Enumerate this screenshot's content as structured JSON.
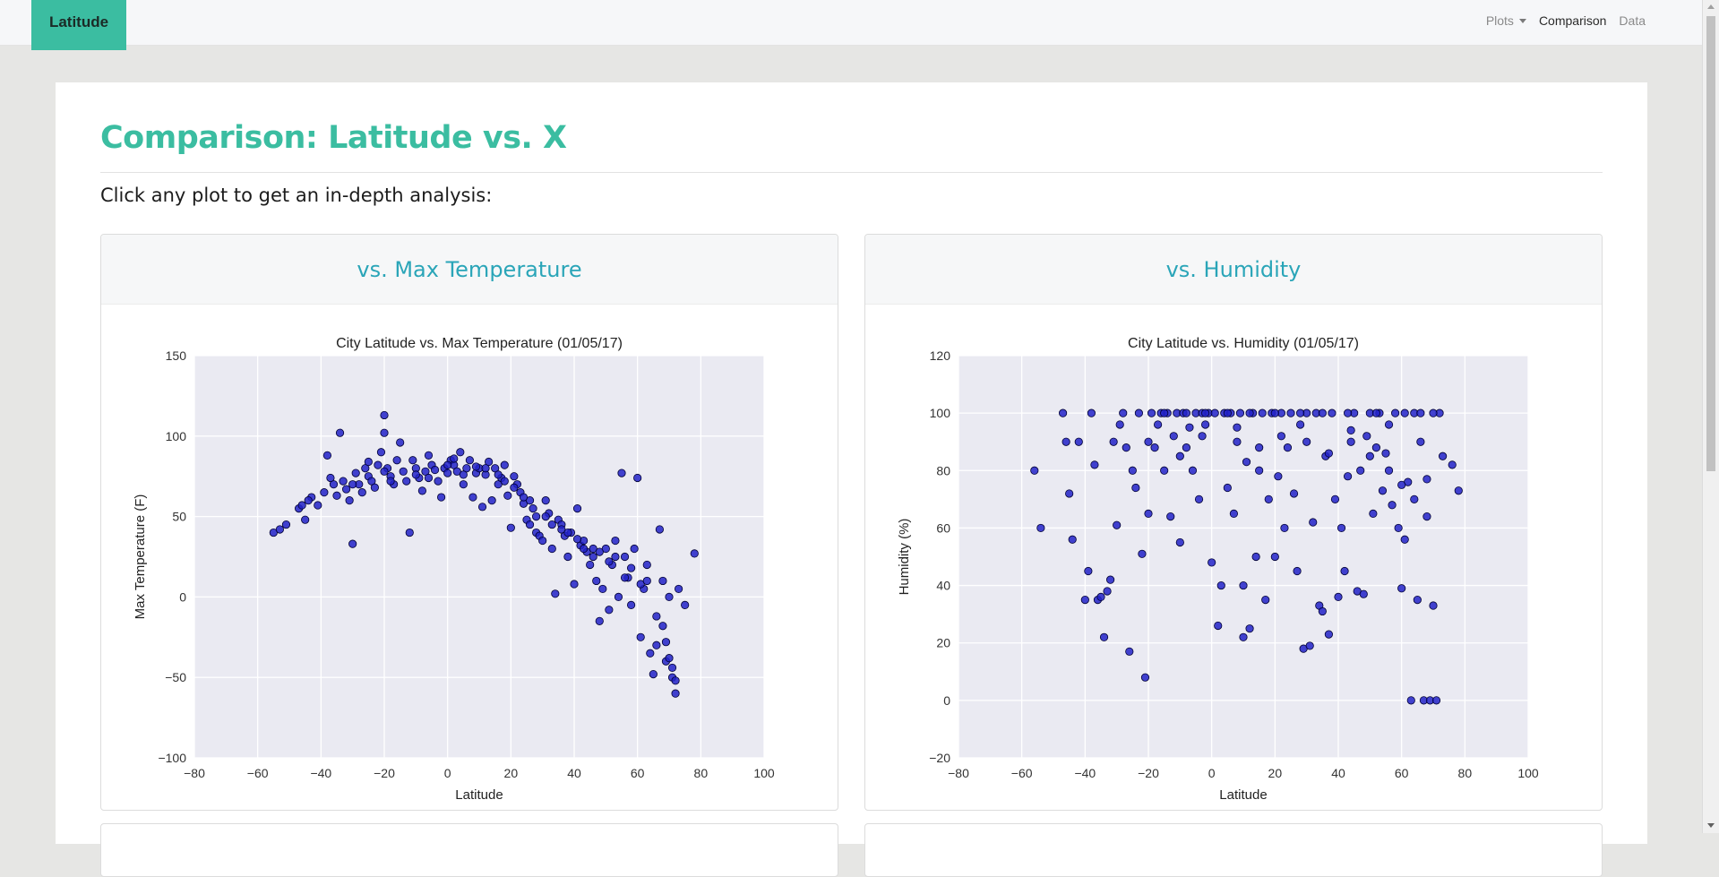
{
  "navbar": {
    "brand": "Latitude",
    "items": [
      {
        "label": "Plots",
        "has_caret": true,
        "active": false
      },
      {
        "label": "Comparison",
        "active": true
      },
      {
        "label": "Data",
        "active": false
      }
    ]
  },
  "page": {
    "title": "Comparison: Latitude vs. X",
    "instruction": "Click any plot to get an in-depth analysis:"
  },
  "colors": {
    "accent": "#3bbda1",
    "card_title": "#2aa5b8",
    "plot_bg": "#eaeaf2",
    "marker_fill": "#2222c8",
    "marker_edge": "#000033"
  },
  "cards": [
    {
      "header": "vs. Max Temperature"
    },
    {
      "header": "vs. Humidity"
    }
  ],
  "chart_data": [
    {
      "type": "scatter",
      "title": "City Latitude vs. Max Temperature (01/05/17)",
      "xlabel": "Latitude",
      "ylabel": "Max Temperature (F)",
      "xlim": [
        -80,
        100
      ],
      "ylim": [
        -100,
        150
      ],
      "xticks": [
        "−80",
        "−60",
        "−40",
        "−20",
        "0",
        "20",
        "40",
        "60",
        "80",
        "100"
      ],
      "yticks": [
        "−100",
        "−50",
        "0",
        "50",
        "100",
        "150"
      ],
      "grid": true,
      "points": [
        [
          -55,
          40
        ],
        [
          -53,
          42
        ],
        [
          -51,
          45
        ],
        [
          -47,
          55
        ],
        [
          -46,
          57
        ],
        [
          -45,
          48
        ],
        [
          -43,
          62
        ],
        [
          -41,
          57
        ],
        [
          -39,
          65
        ],
        [
          -38,
          88
        ],
        [
          -36,
          70
        ],
        [
          -35,
          63
        ],
        [
          -34,
          102
        ],
        [
          -33,
          72
        ],
        [
          -32,
          67
        ],
        [
          -31,
          60
        ],
        [
          -30,
          33
        ],
        [
          -29,
          77
        ],
        [
          -28,
          70
        ],
        [
          -27,
          65
        ],
        [
          -26,
          80
        ],
        [
          -25,
          75
        ],
        [
          -24,
          72
        ],
        [
          -23,
          68
        ],
        [
          -22,
          82
        ],
        [
          -21,
          90
        ],
        [
          -20,
          113
        ],
        [
          -20,
          102
        ],
        [
          -19,
          80
        ],
        [
          -18,
          75
        ],
        [
          -17,
          70
        ],
        [
          -16,
          85
        ],
        [
          -15,
          96
        ],
        [
          -14,
          78
        ],
        [
          -13,
          72
        ],
        [
          -12,
          40
        ],
        [
          -11,
          85
        ],
        [
          -10,
          80
        ],
        [
          -9,
          74
        ],
        [
          -8,
          66
        ],
        [
          -7,
          78
        ],
        [
          -6,
          88
        ],
        [
          -5,
          82
        ],
        [
          -4,
          79
        ],
        [
          -3,
          72
        ],
        [
          -2,
          62
        ],
        [
          -1,
          80
        ],
        [
          0,
          77
        ],
        [
          1,
          85
        ],
        [
          2,
          82
        ],
        [
          3,
          78
        ],
        [
          4,
          90
        ],
        [
          5,
          70
        ],
        [
          6,
          80
        ],
        [
          7,
          85
        ],
        [
          8,
          62
        ],
        [
          9,
          77
        ],
        [
          10,
          80
        ],
        [
          11,
          56
        ],
        [
          12,
          76
        ],
        [
          13,
          84
        ],
        [
          14,
          60
        ],
        [
          15,
          80
        ],
        [
          16,
          70
        ],
        [
          17,
          74
        ],
        [
          18,
          82
        ],
        [
          19,
          63
        ],
        [
          20,
          43
        ],
        [
          21,
          75
        ],
        [
          22,
          70
        ],
        [
          23,
          65
        ],
        [
          24,
          58
        ],
        [
          25,
          48
        ],
        [
          26,
          45
        ],
        [
          27,
          55
        ],
        [
          28,
          40
        ],
        [
          29,
          38
        ],
        [
          30,
          35
        ],
        [
          31,
          60
        ],
        [
          32,
          52
        ],
        [
          33,
          30
        ],
        [
          34,
          2
        ],
        [
          35,
          48
        ],
        [
          36,
          45
        ],
        [
          37,
          38
        ],
        [
          38,
          25
        ],
        [
          39,
          40
        ],
        [
          40,
          8
        ],
        [
          41,
          55
        ],
        [
          42,
          32
        ],
        [
          43,
          35
        ],
        [
          44,
          28
        ],
        [
          45,
          20
        ],
        [
          46,
          25
        ],
        [
          47,
          10
        ],
        [
          48,
          -15
        ],
        [
          49,
          5
        ],
        [
          50,
          30
        ],
        [
          51,
          -8
        ],
        [
          52,
          20
        ],
        [
          53,
          35
        ],
        [
          54,
          0
        ],
        [
          55,
          77
        ],
        [
          56,
          25
        ],
        [
          57,
          12
        ],
        [
          58,
          -5
        ],
        [
          59,
          30
        ],
        [
          60,
          74
        ],
        [
          61,
          -25
        ],
        [
          62,
          5
        ],
        [
          63,
          20
        ],
        [
          64,
          -35
        ],
        [
          65,
          -48
        ],
        [
          66,
          -30
        ],
        [
          67,
          42
        ],
        [
          68,
          10
        ],
        [
          69,
          -40
        ],
        [
          70,
          0
        ],
        [
          71,
          -50
        ],
        [
          72,
          -60
        ],
        [
          73,
          5
        ],
        [
          75,
          -5
        ],
        [
          78,
          27
        ],
        [
          -44,
          60
        ],
        [
          -37,
          74
        ],
        [
          -25,
          84
        ],
        [
          -18,
          72
        ],
        [
          -6,
          74
        ],
        [
          2,
          86
        ],
        [
          9,
          81
        ],
        [
          16,
          76
        ],
        [
          21,
          68
        ],
        [
          26,
          60
        ],
        [
          31,
          50
        ],
        [
          36,
          42
        ],
        [
          41,
          36
        ],
        [
          46,
          30
        ],
        [
          51,
          22
        ],
        [
          56,
          12
        ],
        [
          61,
          8
        ],
        [
          66,
          -12
        ],
        [
          69,
          -28
        ],
        [
          71,
          -44
        ],
        [
          -30,
          70
        ],
        [
          -20,
          78
        ],
        [
          -10,
          76
        ],
        [
          0,
          82
        ],
        [
          5,
          76
        ],
        [
          12,
          80
        ],
        [
          18,
          72
        ],
        [
          24,
          62
        ],
        [
          28,
          50
        ],
        [
          33,
          45
        ],
        [
          38,
          40
        ],
        [
          43,
          30
        ],
        [
          48,
          28
        ],
        [
          53,
          25
        ],
        [
          58,
          18
        ],
        [
          63,
          10
        ],
        [
          68,
          -18
        ],
        [
          70,
          -38
        ],
        [
          72,
          -52
        ]
      ]
    },
    {
      "type": "scatter",
      "title": "City Latitude vs. Humidity (01/05/17)",
      "xlabel": "Latitude",
      "ylabel": "Humidity (%)",
      "xlim": [
        -80,
        100
      ],
      "ylim": [
        -20,
        120
      ],
      "xticks": [
        "−80",
        "−60",
        "−40",
        "−20",
        "0",
        "20",
        "40",
        "60",
        "80",
        "100"
      ],
      "yticks": [
        "−20",
        "0",
        "20",
        "40",
        "60",
        "80",
        "100",
        "120"
      ],
      "grid": true,
      "points": [
        [
          -56,
          80
        ],
        [
          -54,
          60
        ],
        [
          -47,
          100
        ],
        [
          -46,
          90
        ],
        [
          -45,
          72
        ],
        [
          -44,
          56
        ],
        [
          -42,
          90
        ],
        [
          -40,
          35
        ],
        [
          -39,
          45
        ],
        [
          -38,
          100
        ],
        [
          -37,
          82
        ],
        [
          -36,
          35
        ],
        [
          -35,
          36
        ],
        [
          -34,
          22
        ],
        [
          -33,
          38
        ],
        [
          -32,
          42
        ],
        [
          -31,
          90
        ],
        [
          -30,
          61
        ],
        [
          -29,
          96
        ],
        [
          -27,
          88
        ],
        [
          -26,
          17
        ],
        [
          -25,
          80
        ],
        [
          -24,
          74
        ],
        [
          -23,
          100
        ],
        [
          -22,
          51
        ],
        [
          -21,
          8
        ],
        [
          -20,
          65
        ],
        [
          -19,
          100
        ],
        [
          -18,
          88
        ],
        [
          -17,
          96
        ],
        [
          -16,
          100
        ],
        [
          -15,
          80
        ],
        [
          -14,
          100
        ],
        [
          -13,
          64
        ],
        [
          -12,
          92
        ],
        [
          -11,
          100
        ],
        [
          -10,
          55
        ],
        [
          -9,
          100
        ],
        [
          -8,
          88
        ],
        [
          -7,
          95
        ],
        [
          -6,
          80
        ],
        [
          -5,
          100
        ],
        [
          -4,
          70
        ],
        [
          -3,
          100
        ],
        [
          -2,
          96
        ],
        [
          -1,
          100
        ],
        [
          0,
          48
        ],
        [
          1,
          100
        ],
        [
          2,
          26
        ],
        [
          3,
          40
        ],
        [
          4,
          100
        ],
        [
          5,
          74
        ],
        [
          6,
          100
        ],
        [
          7,
          65
        ],
        [
          8,
          90
        ],
        [
          9,
          100
        ],
        [
          10,
          40
        ],
        [
          10,
          22
        ],
        [
          11,
          83
        ],
        [
          12,
          25
        ],
        [
          13,
          100
        ],
        [
          14,
          50
        ],
        [
          15,
          80
        ],
        [
          16,
          100
        ],
        [
          17,
          35
        ],
        [
          18,
          70
        ],
        [
          19,
          100
        ],
        [
          20,
          50
        ],
        [
          21,
          78
        ],
        [
          22,
          100
        ],
        [
          23,
          60
        ],
        [
          24,
          88
        ],
        [
          25,
          100
        ],
        [
          26,
          72
        ],
        [
          27,
          45
        ],
        [
          28,
          96
        ],
        [
          29,
          18
        ],
        [
          30,
          100
        ],
        [
          31,
          19
        ],
        [
          32,
          62
        ],
        [
          33,
          100
        ],
        [
          34,
          33
        ],
        [
          35,
          31
        ],
        [
          36,
          85
        ],
        [
          37,
          23
        ],
        [
          38,
          100
        ],
        [
          39,
          70
        ],
        [
          40,
          36
        ],
        [
          41,
          60
        ],
        [
          42,
          45
        ],
        [
          43,
          78
        ],
        [
          44,
          94
        ],
        [
          45,
          100
        ],
        [
          46,
          38
        ],
        [
          47,
          80
        ],
        [
          48,
          37
        ],
        [
          49,
          92
        ],
        [
          50,
          100
        ],
        [
          51,
          65
        ],
        [
          52,
          88
        ],
        [
          53,
          100
        ],
        [
          54,
          73
        ],
        [
          55,
          86
        ],
        [
          56,
          96
        ],
        [
          57,
          68
        ],
        [
          58,
          100
        ],
        [
          59,
          60
        ],
        [
          60,
          39
        ],
        [
          61,
          56
        ],
        [
          62,
          76
        ],
        [
          63,
          0
        ],
        [
          64,
          100
        ],
        [
          65,
          35
        ],
        [
          66,
          90
        ],
        [
          67,
          0
        ],
        [
          68,
          77
        ],
        [
          69,
          0
        ],
        [
          70,
          33
        ],
        [
          71,
          0
        ],
        [
          72,
          100
        ],
        [
          73,
          85
        ],
        [
          76,
          82
        ],
        [
          78,
          73
        ],
        [
          -28,
          100
        ],
        [
          -15,
          100
        ],
        [
          -8,
          100
        ],
        [
          -2,
          100
        ],
        [
          5,
          100
        ],
        [
          12,
          100
        ],
        [
          20,
          100
        ],
        [
          28,
          100
        ],
        [
          35,
          100
        ],
        [
          43,
          100
        ],
        [
          52,
          100
        ],
        [
          61,
          100
        ],
        [
          66,
          100
        ],
        [
          70,
          100
        ],
        [
          -20,
          90
        ],
        [
          -10,
          85
        ],
        [
          -3,
          92
        ],
        [
          8,
          95
        ],
        [
          15,
          88
        ],
        [
          22,
          92
        ],
        [
          30,
          90
        ],
        [
          37,
          86
        ],
        [
          44,
          90
        ],
        [
          50,
          85
        ],
        [
          56,
          80
        ],
        [
          60,
          75
        ],
        [
          64,
          70
        ],
        [
          68,
          64
        ]
      ]
    }
  ]
}
